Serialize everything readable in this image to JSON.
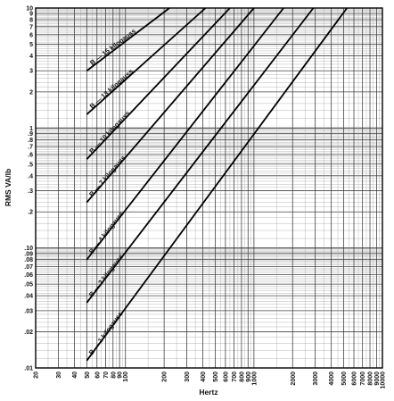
{
  "chart_data": {
    "type": "line",
    "x_scale": "log",
    "y_scale": "log",
    "xlabel": "Hertz",
    "ylabel": "RMS  VA/lb",
    "xlim": [
      20,
      10000
    ],
    "ylim": [
      0.01,
      10
    ],
    "grid": true,
    "legend": "none",
    "x_tick_labels": [
      "20",
      "30",
      "40",
      "50",
      "60",
      "70",
      "80",
      "90",
      "100",
      "200",
      "300",
      "400",
      "500",
      "600",
      "700",
      "800",
      "900",
      "1000",
      "2000",
      "3000",
      "4000",
      "5000",
      "6000",
      "7000",
      "8000",
      "9000",
      "10000"
    ],
    "x_tick_values": [
      20,
      30,
      40,
      50,
      60,
      70,
      80,
      90,
      100,
      200,
      300,
      400,
      500,
      600,
      700,
      800,
      900,
      1000,
      2000,
      3000,
      4000,
      5000,
      6000,
      7000,
      8000,
      9000,
      10000
    ],
    "y_tick_labels": [
      ".01",
      ".02",
      ".03",
      ".04",
      ".05",
      ".06",
      ".07",
      ".08",
      ".09",
      ".10",
      ".2",
      ".3",
      ".4",
      ".5",
      ".6",
      ".7",
      ".8",
      ".9",
      "1",
      "2",
      "3",
      "4",
      "5",
      "6",
      "7",
      "8",
      "9",
      "10"
    ],
    "y_tick_values": [
      0.01,
      0.02,
      0.03,
      0.04,
      0.05,
      0.06,
      0.07,
      0.08,
      0.09,
      0.1,
      0.2,
      0.3,
      0.4,
      0.5,
      0.6,
      0.7,
      0.8,
      0.9,
      1,
      2,
      3,
      4,
      5,
      6,
      7,
      8,
      9,
      10
    ],
    "series": [
      {
        "name": "B — 1 kilogauss",
        "x": [
          50,
          5300
        ],
        "y": [
          0.0115,
          10
        ]
      },
      {
        "name": "B — 2 kilogauss",
        "x": [
          50,
          2900
        ],
        "y": [
          0.035,
          10
        ]
      },
      {
        "name": "B — 4 kilogauss",
        "x": [
          50,
          1700
        ],
        "y": [
          0.08,
          10
        ]
      },
      {
        "name": "B — 7 kilogauss",
        "x": [
          50,
          1000
        ],
        "y": [
          0.24,
          10
        ]
      },
      {
        "name": "B — 10 kilogauss",
        "x": [
          50,
          650
        ],
        "y": [
          0.55,
          10
        ]
      },
      {
        "name": "B — 13 kilogauss",
        "x": [
          50,
          420
        ],
        "y": [
          1.3,
          10
        ]
      },
      {
        "name": "B — 15 kilogauss",
        "x": [
          50,
          220
        ],
        "y": [
          3.0,
          10
        ]
      }
    ]
  }
}
